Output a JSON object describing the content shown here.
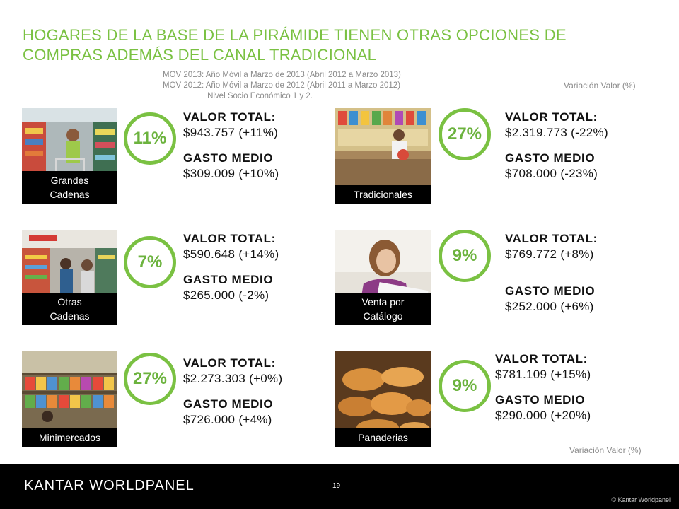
{
  "title": "HOGARES DE LA BASE DE LA PIRÁMIDE TIENEN OTRAS OPCIONES DE COMPRAS ADEMÁS DEL CANAL TRADICIONAL",
  "notes": [
    "MOV 2013: Año Móvil a Marzo de 2013 (Abril 2012 a Marzo 2013)",
    "MOV 2012: Año Móvil a Marzo de 2012 (Abril 2011 a Marzo 2012)",
    "Nivel Socio Económico 1 y 2."
  ],
  "variation_label_top": "Variación Valor (%)",
  "variation_label_bottom": "Variación Valor (%)",
  "labels": {
    "valor_total": "VALOR TOTAL:",
    "gasto_medio": "GASTO MEDIO"
  },
  "accent_color": "#7ac142",
  "channels": [
    {
      "caption_line1": "Grandes",
      "caption_line2": "Cadenas",
      "share": "11%",
      "valor_total": "$943.757 (+11%)",
      "gasto_medio": "$309.009 (+10%)",
      "icon": "supermarket-aisle-photo"
    },
    {
      "caption_line1": "Tradicionales",
      "caption_line2": "",
      "share": "27%",
      "valor_total": "$2.319.773 (-22%)",
      "gasto_medio": "$708.000 (-23%)",
      "icon": "corner-store-photo"
    },
    {
      "caption_line1": "Otras",
      "caption_line2": "Cadenas",
      "share": "7%",
      "valor_total": "$590.648 (+14%)",
      "gasto_medio": "$265.000 (-2%)",
      "icon": "store-shoppers-photo"
    },
    {
      "caption_line1": "Venta por",
      "caption_line2": "Catálogo",
      "share": "9%",
      "valor_total": "$769.772 (+8%)",
      "gasto_medio": "$252.000 (+6%)",
      "icon": "woman-reading-catalog-photo"
    },
    {
      "caption_line1": "Minimercados",
      "caption_line2": "",
      "share": "27%",
      "valor_total": "$2.273.303 (+0%)",
      "gasto_medio": "$726.000 (+4%)",
      "icon": "minimarket-shelves-photo"
    },
    {
      "caption_line1": "Panaderias",
      "caption_line2": "",
      "share": "9%",
      "valor_total": "$781.109 (+15%)",
      "gasto_medio": "$290.000 (+20%)",
      "icon": "bread-basket-photo"
    }
  ],
  "footer": {
    "logo": "KANTAR WORLDPANEL",
    "page_number": "19",
    "copyright": "© Kantar Worldpanel"
  }
}
